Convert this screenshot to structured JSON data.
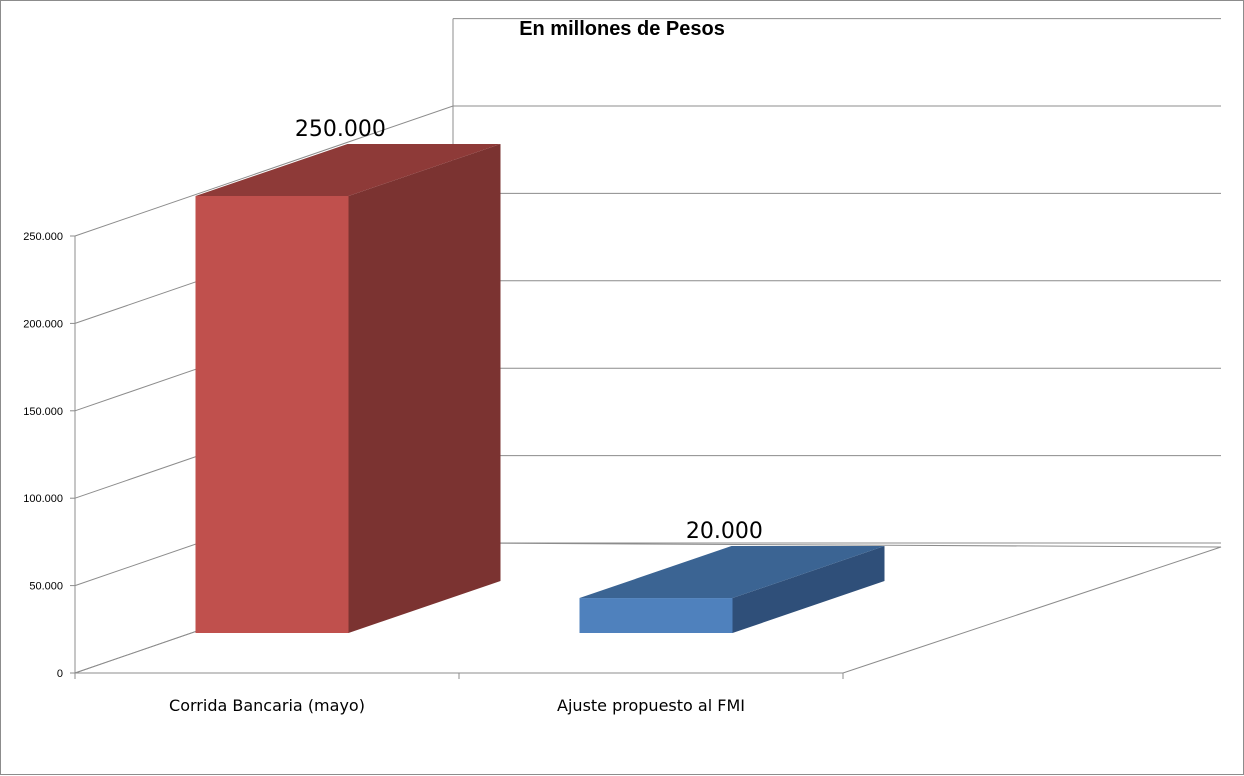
{
  "chart_data": {
    "type": "bar",
    "title": "En millones de Pesos",
    "categories": [
      "Corrida Bancaria (mayo)",
      "Ajuste propuesto al FMI"
    ],
    "values": [
      250000,
      20000
    ],
    "data_labels": [
      "250.000",
      "20.000"
    ],
    "y_ticks": [
      "0",
      "50.000",
      "100.000",
      "150.000",
      "200.000",
      "250.000"
    ],
    "y_tick_values": [
      0,
      50000,
      100000,
      150000,
      200000,
      250000
    ],
    "ylim": [
      0,
      250000
    ],
    "grid": true,
    "legend": "none",
    "colors": {
      "bar1_front": "#C0504D",
      "bar1_side": "#7B3331",
      "bar1_top": "#8E3A38",
      "bar2_front": "#4F81BD",
      "bar2_side": "#2F4F79",
      "bar2_top": "#3B6493"
    }
  }
}
